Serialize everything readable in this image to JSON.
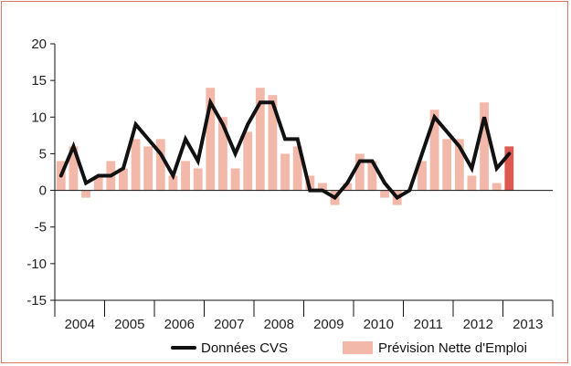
{
  "chart_data": {
    "type": "bar",
    "title": "",
    "xlabel": "",
    "ylabel": "",
    "ylim": [
      -15,
      20
    ],
    "yticks": [
      20,
      15,
      10,
      5,
      0,
      -5,
      -10,
      -15
    ],
    "year_labels": [
      "2004",
      "2005",
      "2006",
      "2007",
      "2008",
      "2009",
      "2010",
      "2011",
      "2012",
      "2013"
    ],
    "colors": {
      "bar": "#f2b8a9",
      "highlight_bar": "#dd5a50",
      "line": "#111111",
      "frame": "#d9776b"
    },
    "series": [
      {
        "name": "Prévision Nette d'Emploi",
        "type": "bar",
        "values": [
          4,
          6,
          -1,
          2,
          4,
          3,
          7,
          6,
          7,
          2,
          4,
          3,
          14,
          10,
          3,
          8,
          14,
          13,
          5,
          6,
          2,
          1,
          -2,
          1,
          5,
          4,
          -1,
          -2,
          0,
          4,
          11,
          7,
          7,
          2,
          12,
          1,
          6
        ],
        "highlight_index": 36
      },
      {
        "name": "Données CVS",
        "type": "line",
        "values": [
          2,
          6,
          1,
          2,
          2,
          3,
          9,
          7,
          5,
          2,
          7,
          4,
          12,
          9,
          5,
          9,
          12,
          12,
          7,
          7,
          0,
          0,
          -1,
          1,
          4,
          4,
          1,
          -1,
          0,
          5,
          10,
          8,
          6,
          3,
          10,
          3,
          5
        ]
      }
    ],
    "legend": {
      "placement": "bottom-right",
      "items": [
        {
          "label": "Données CVS",
          "kind": "line"
        },
        {
          "label": "Prévision Nette d'Emploi",
          "kind": "bar"
        }
      ]
    }
  }
}
